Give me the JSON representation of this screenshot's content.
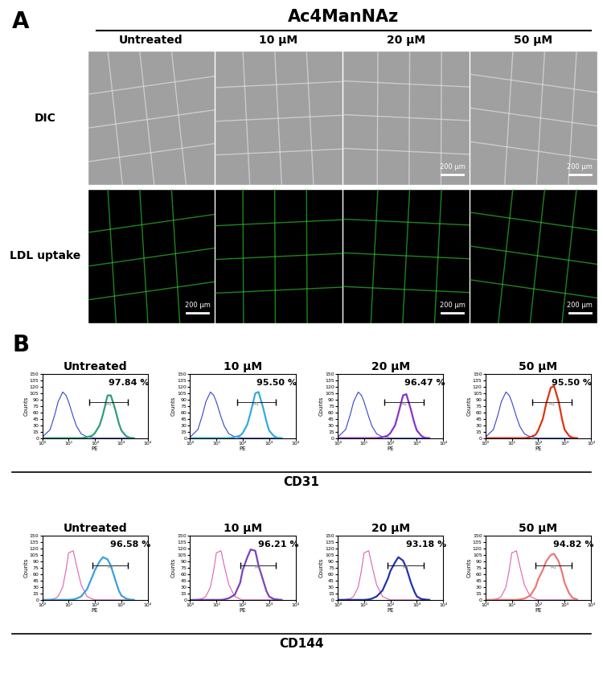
{
  "panel_a": {
    "label": "A",
    "header": "Ac4ManNAz",
    "columns": [
      "Untreated",
      "10 µM",
      "20 µM",
      "50 µM"
    ],
    "rows": [
      {
        "label": "DIC",
        "scale_bars": [
          null,
          null,
          "200 µm",
          "200 µm"
        ]
      },
      {
        "label": "LDL uptake",
        "scale_bars": [
          "200 µm",
          null,
          "200 µm",
          "200 µm"
        ]
      }
    ]
  },
  "panel_b": {
    "label": "B",
    "groups": [
      "CD31",
      "CD144"
    ]
  },
  "chart_data": [
    {
      "type": "line",
      "title": "Untreated",
      "x_label": "PE",
      "y_label": "Counts",
      "log": "x",
      "xlim": [
        1,
        10000
      ],
      "ylim": [
        0,
        150
      ],
      "xticks": [
        {
          "value": 1,
          "label": "10⁰"
        },
        {
          "value": 10,
          "label": "10¹"
        },
        {
          "value": 100,
          "label": "10²"
        },
        {
          "value": 1000,
          "label": "10³"
        },
        {
          "value": 10000,
          "label": "10⁴"
        }
      ],
      "yticks": [
        0,
        15,
        30,
        45,
        60,
        75,
        90,
        105,
        120,
        135,
        150
      ],
      "x": [
        1,
        2,
        3,
        4,
        6,
        8,
        10,
        15,
        20,
        30,
        50,
        80,
        100,
        150,
        200,
        300,
        400,
        600,
        800,
        1000,
        1500,
        2000,
        3000
      ],
      "series": [
        {
          "color": "#3344cc",
          "values": [
            2,
            20,
            55,
            85,
            108,
            100,
            85,
            50,
            28,
            10,
            3,
            1,
            0,
            0,
            0,
            0,
            0,
            0,
            0,
            0,
            0,
            0,
            0
          ]
        },
        {
          "color": "#2e9e7a",
          "values": [
            0,
            0,
            0,
            0,
            0,
            0,
            0,
            0,
            0,
            0,
            2,
            6,
            12,
            30,
            55,
            100,
            100,
            65,
            35,
            18,
            5,
            1,
            0
          ]
        }
      ],
      "gate": {
        "label": "M1",
        "range": [
          60,
          1800
        ],
        "y": 85
      },
      "annotations": [
        {
          "text": "97.84 %"
        }
      ]
    },
    {
      "type": "line",
      "title": "10 µM",
      "x_label": "PE",
      "y_label": "Counts",
      "log": "x",
      "xlim": [
        1,
        10000
      ],
      "ylim": [
        0,
        150
      ],
      "xticks": [
        {
          "value": 1,
          "label": "10⁰"
        },
        {
          "value": 10,
          "label": "10¹"
        },
        {
          "value": 100,
          "label": "10²"
        },
        {
          "value": 1000,
          "label": "10³"
        },
        {
          "value": 10000,
          "label": "10⁴"
        }
      ],
      "yticks": [
        0,
        15,
        30,
        45,
        60,
        75,
        90,
        105,
        120,
        135,
        150
      ],
      "x": [
        1,
        2,
        3,
        4,
        6,
        8,
        10,
        15,
        20,
        30,
        50,
        80,
        100,
        150,
        200,
        300,
        400,
        600,
        800,
        1000,
        1500,
        2000,
        3000
      ],
      "series": [
        {
          "color": "#3344cc",
          "values": [
            2,
            20,
            55,
            85,
            108,
            100,
            85,
            50,
            28,
            10,
            3,
            1,
            0,
            0,
            0,
            0,
            0,
            0,
            0,
            0,
            0,
            0,
            0
          ]
        },
        {
          "color": "#33aadd",
          "values": [
            0,
            0,
            0,
            0,
            0,
            0,
            0,
            0,
            0,
            0,
            2,
            6,
            12,
            32,
            60,
            105,
            108,
            70,
            38,
            18,
            5,
            1,
            0
          ]
        }
      ],
      "gate": {
        "label": "M1",
        "range": [
          60,
          1800
        ],
        "y": 85
      },
      "annotations": [
        {
          "text": "95.50 %"
        }
      ]
    },
    {
      "type": "line",
      "title": "20 µM",
      "x_label": "PE",
      "y_label": "Counts",
      "log": "x",
      "xlim": [
        1,
        10000
      ],
      "ylim": [
        0,
        150
      ],
      "xticks": [
        {
          "value": 1,
          "label": "10⁰"
        },
        {
          "value": 10,
          "label": "10¹"
        },
        {
          "value": 100,
          "label": "10²"
        },
        {
          "value": 1000,
          "label": "10³"
        },
        {
          "value": 10000,
          "label": "10⁴"
        }
      ],
      "yticks": [
        0,
        15,
        30,
        45,
        60,
        75,
        90,
        105,
        120,
        135,
        150
      ],
      "x": [
        1,
        2,
        3,
        4,
        6,
        8,
        10,
        15,
        20,
        30,
        50,
        80,
        100,
        150,
        200,
        300,
        400,
        600,
        800,
        1000,
        1500,
        2000,
        3000
      ],
      "series": [
        {
          "color": "#3344cc",
          "values": [
            2,
            20,
            55,
            85,
            108,
            100,
            85,
            50,
            28,
            10,
            3,
            1,
            0,
            0,
            0,
            0,
            0,
            0,
            0,
            0,
            0,
            0,
            0
          ]
        },
        {
          "color": "#8833cc",
          "values": [
            0,
            0,
            0,
            0,
            0,
            0,
            0,
            0,
            0,
            0,
            2,
            6,
            12,
            30,
            58,
            100,
            103,
            66,
            36,
            18,
            5,
            1,
            0
          ]
        }
      ],
      "gate": {
        "label": "M1",
        "range": [
          60,
          1800
        ],
        "y": 85
      },
      "annotations": [
        {
          "text": "96.47 %"
        }
      ]
    },
    {
      "type": "line",
      "title": "50 µM",
      "x_label": "PE",
      "y_label": "Counts",
      "log": "x",
      "xlim": [
        1,
        10000
      ],
      "ylim": [
        0,
        150
      ],
      "xticks": [
        {
          "value": 1,
          "label": "10⁰"
        },
        {
          "value": 10,
          "label": "10¹"
        },
        {
          "value": 100,
          "label": "10²"
        },
        {
          "value": 1000,
          "label": "10³"
        },
        {
          "value": 10000,
          "label": "10⁴"
        }
      ],
      "yticks": [
        0,
        15,
        30,
        45,
        60,
        75,
        90,
        105,
        120,
        135,
        150
      ],
      "x": [
        1,
        2,
        3,
        4,
        6,
        8,
        10,
        15,
        20,
        30,
        50,
        80,
        100,
        150,
        200,
        300,
        400,
        600,
        800,
        1000,
        1500,
        2000,
        3000
      ],
      "series": [
        {
          "color": "#3344cc",
          "values": [
            2,
            20,
            55,
            85,
            108,
            100,
            85,
            50,
            28,
            10,
            3,
            1,
            0,
            0,
            0,
            0,
            0,
            0,
            0,
            0,
            0,
            0,
            0
          ]
        },
        {
          "color": "#dd3311",
          "values": [
            0,
            0,
            0,
            0,
            0,
            0,
            0,
            0,
            0,
            0,
            2,
            8,
            18,
            45,
            80,
            118,
            122,
            85,
            45,
            20,
            5,
            1,
            0
          ]
        }
      ],
      "gate": {
        "label": "M1",
        "range": [
          60,
          1800
        ],
        "y": 85
      },
      "annotations": [
        {
          "text": "95.50 %"
        }
      ]
    },
    {
      "type": "line",
      "title": "Untreated",
      "x_label": "PE",
      "y_label": "Counts",
      "log": "x",
      "xlim": [
        1,
        10000
      ],
      "ylim": [
        0,
        150
      ],
      "xticks": [
        {
          "value": 1,
          "label": "10⁰"
        },
        {
          "value": 10,
          "label": "10¹"
        },
        {
          "value": 100,
          "label": "10²"
        },
        {
          "value": 1000,
          "label": "10³"
        },
        {
          "value": 10000,
          "label": "10⁴"
        }
      ],
      "yticks": [
        0,
        15,
        30,
        45,
        60,
        75,
        90,
        105,
        120,
        135,
        150
      ],
      "x": [
        1,
        2,
        3,
        4,
        6,
        8,
        10,
        15,
        20,
        30,
        50,
        80,
        100,
        150,
        200,
        300,
        400,
        600,
        800,
        1000,
        1500,
        2000,
        3000
      ],
      "series": [
        {
          "color": "#e060b0",
          "values": [
            0,
            1,
            3,
            8,
            30,
            70,
            110,
            115,
            80,
            35,
            8,
            2,
            0,
            0,
            0,
            0,
            0,
            0,
            0,
            0,
            0,
            0,
            0
          ]
        },
        {
          "color": "#3aa0dd",
          "values": [
            0,
            0,
            0,
            0,
            0,
            0,
            0,
            1,
            3,
            8,
            25,
            55,
            70,
            90,
            100,
            95,
            80,
            45,
            22,
            10,
            3,
            1,
            0
          ]
        }
      ],
      "gate": {
        "label": "M1",
        "range": [
          80,
          1800
        ],
        "y": 80
      },
      "annotations": [
        {
          "text": "96.58 %"
        }
      ]
    },
    {
      "type": "line",
      "title": "10 µM",
      "x_label": "PE",
      "y_label": "Counts",
      "log": "x",
      "xlim": [
        1,
        10000
      ],
      "ylim": [
        0,
        150
      ],
      "xticks": [
        {
          "value": 1,
          "label": "10⁰"
        },
        {
          "value": 10,
          "label": "10¹"
        },
        {
          "value": 100,
          "label": "10²"
        },
        {
          "value": 1000,
          "label": "10³"
        },
        {
          "value": 10000,
          "label": "10⁴"
        }
      ],
      "yticks": [
        0,
        15,
        30,
        45,
        60,
        75,
        90,
        105,
        120,
        135,
        150
      ],
      "x": [
        1,
        2,
        3,
        4,
        6,
        8,
        10,
        15,
        20,
        30,
        50,
        80,
        100,
        150,
        200,
        300,
        400,
        600,
        800,
        1000,
        1500,
        2000,
        3000
      ],
      "series": [
        {
          "color": "#e060b0",
          "values": [
            0,
            1,
            3,
            8,
            30,
            70,
            110,
            115,
            80,
            35,
            8,
            2,
            0,
            0,
            0,
            0,
            0,
            0,
            0,
            0,
            0,
            0,
            0
          ]
        },
        {
          "color": "#7744bb",
          "values": [
            0,
            0,
            0,
            0,
            0,
            0,
            0,
            0,
            1,
            4,
            12,
            40,
            70,
            100,
            118,
            115,
            80,
            45,
            20,
            8,
            2,
            1,
            0
          ]
        }
      ],
      "gate": {
        "label": "M1",
        "range": [
          80,
          1800
        ],
        "y": 80
      },
      "annotations": [
        {
          "text": "96.21 %"
        }
      ]
    },
    {
      "type": "line",
      "title": "20 µM",
      "x_label": "PE",
      "y_label": "Counts",
      "log": "x",
      "xlim": [
        1,
        10000
      ],
      "ylim": [
        0,
        150
      ],
      "xticks": [
        {
          "value": 1,
          "label": "10⁰"
        },
        {
          "value": 10,
          "label": "10¹"
        },
        {
          "value": 100,
          "label": "10²"
        },
        {
          "value": 1000,
          "label": "10³"
        },
        {
          "value": 10000,
          "label": "10⁴"
        }
      ],
      "yticks": [
        0,
        15,
        30,
        45,
        60,
        75,
        90,
        105,
        120,
        135,
        150
      ],
      "x": [
        1,
        2,
        3,
        4,
        6,
        8,
        10,
        15,
        20,
        30,
        50,
        80,
        100,
        150,
        200,
        300,
        400,
        600,
        800,
        1000,
        1500,
        2000,
        3000
      ],
      "series": [
        {
          "color": "#e060b0",
          "values": [
            0,
            1,
            3,
            8,
            30,
            70,
            110,
            115,
            80,
            35,
            8,
            2,
            0,
            0,
            0,
            0,
            0,
            0,
            0,
            0,
            0,
            0,
            0
          ]
        },
        {
          "color": "#2233aa",
          "values": [
            0,
            0,
            0,
            0,
            0,
            0,
            0,
            1,
            3,
            8,
            22,
            50,
            68,
            88,
            100,
            92,
            75,
            40,
            20,
            8,
            2,
            1,
            0
          ]
        }
      ],
      "gate": {
        "label": "M1",
        "range": [
          80,
          1800
        ],
        "y": 80
      },
      "annotations": [
        {
          "text": "93.18 %"
        }
      ]
    },
    {
      "type": "line",
      "title": "50 µM",
      "x_label": "PE",
      "y_label": "Counts",
      "log": "x",
      "xlim": [
        1,
        10000
      ],
      "ylim": [
        0,
        150
      ],
      "xticks": [
        {
          "value": 1,
          "label": "10⁰"
        },
        {
          "value": 10,
          "label": "10¹"
        },
        {
          "value": 100,
          "label": "10²"
        },
        {
          "value": 1000,
          "label": "10³"
        },
        {
          "value": 10000,
          "label": "10⁴"
        }
      ],
      "yticks": [
        0,
        15,
        30,
        45,
        60,
        75,
        90,
        105,
        120,
        135,
        150
      ],
      "x": [
        1,
        2,
        3,
        4,
        6,
        8,
        10,
        15,
        20,
        30,
        50,
        80,
        100,
        150,
        200,
        300,
        400,
        600,
        800,
        1000,
        1500,
        2000,
        3000
      ],
      "series": [
        {
          "color": "#e060b0",
          "values": [
            0,
            1,
            3,
            8,
            30,
            70,
            110,
            115,
            80,
            35,
            8,
            2,
            0,
            0,
            0,
            0,
            0,
            0,
            0,
            0,
            0,
            0,
            0
          ]
        },
        {
          "color": "#ee7777",
          "values": [
            0,
            0,
            0,
            0,
            0,
            0,
            0,
            0,
            1,
            3,
            10,
            30,
            48,
            70,
            90,
            105,
            108,
            90,
            65,
            40,
            15,
            5,
            1
          ]
        }
      ],
      "gate": {
        "label": "M1",
        "range": [
          80,
          1800
        ],
        "y": 80
      },
      "annotations": [
        {
          "text": "94.82 %"
        }
      ]
    }
  ]
}
